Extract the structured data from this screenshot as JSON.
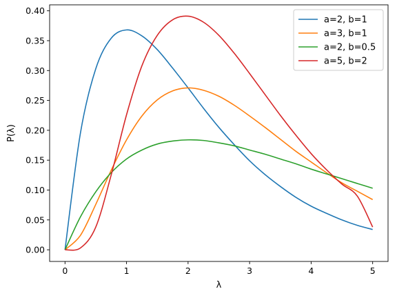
{
  "chart_data": {
    "type": "line",
    "title": "",
    "xlabel": "λ",
    "ylabel": "P(λ)",
    "xlim": [
      -0.25,
      5.25
    ],
    "ylim": [
      -0.0195,
      0.41
    ],
    "xticks": [
      0,
      1,
      2,
      3,
      4,
      5
    ],
    "xtick_labels": [
      "0",
      "1",
      "2",
      "3",
      "4",
      "5"
    ],
    "yticks": [
      0.0,
      0.05,
      0.1,
      0.15,
      0.2,
      0.25,
      0.3,
      0.35,
      0.4
    ],
    "ytick_labels": [
      "0.00",
      "0.05",
      "0.10",
      "0.15",
      "0.20",
      "0.25",
      "0.30",
      "0.35",
      "0.40"
    ],
    "grid": false,
    "legend_position": "top-right",
    "x": [
      0,
      0.25,
      0.5,
      0.75,
      1,
      1.25,
      1.5,
      1.75,
      2,
      2.25,
      2.5,
      2.75,
      3,
      3.25,
      3.5,
      3.75,
      4,
      4.25,
      4.5,
      4.75,
      5
    ],
    "series": [
      {
        "name": "a=2, b=1",
        "color": "#1f77b4",
        "values": [
          0,
          0.195,
          0.303,
          0.354,
          0.368,
          0.358,
          0.335,
          0.304,
          0.271,
          0.237,
          0.205,
          0.176,
          0.149,
          0.126,
          0.106,
          0.088,
          0.073,
          0.061,
          0.05,
          0.041,
          0.034
        ]
      },
      {
        "name": "a=3, b=1",
        "color": "#ff7f0e",
        "values": [
          0,
          0.024,
          0.076,
          0.133,
          0.184,
          0.224,
          0.251,
          0.266,
          0.271,
          0.267,
          0.257,
          0.242,
          0.224,
          0.205,
          0.185,
          0.165,
          0.147,
          0.129,
          0.112,
          0.098,
          0.084
        ]
      },
      {
        "name": "a=2, b=0.5",
        "color": "#2ca02c",
        "values": [
          0,
          0.055,
          0.097,
          0.129,
          0.152,
          0.167,
          0.177,
          0.182,
          0.184,
          0.183,
          0.179,
          0.174,
          0.167,
          0.16,
          0.152,
          0.144,
          0.135,
          0.127,
          0.119,
          0.111,
          0.103
        ]
      },
      {
        "name": "a=5, b=2",
        "color": "#d62728",
        "values": [
          0,
          0.003,
          0.038,
          0.125,
          0.226,
          0.308,
          0.359,
          0.385,
          0.391,
          0.381,
          0.359,
          0.329,
          0.295,
          0.26,
          0.225,
          0.192,
          0.161,
          0.134,
          0.11,
          0.09,
          0.038
        ]
      }
    ]
  }
}
